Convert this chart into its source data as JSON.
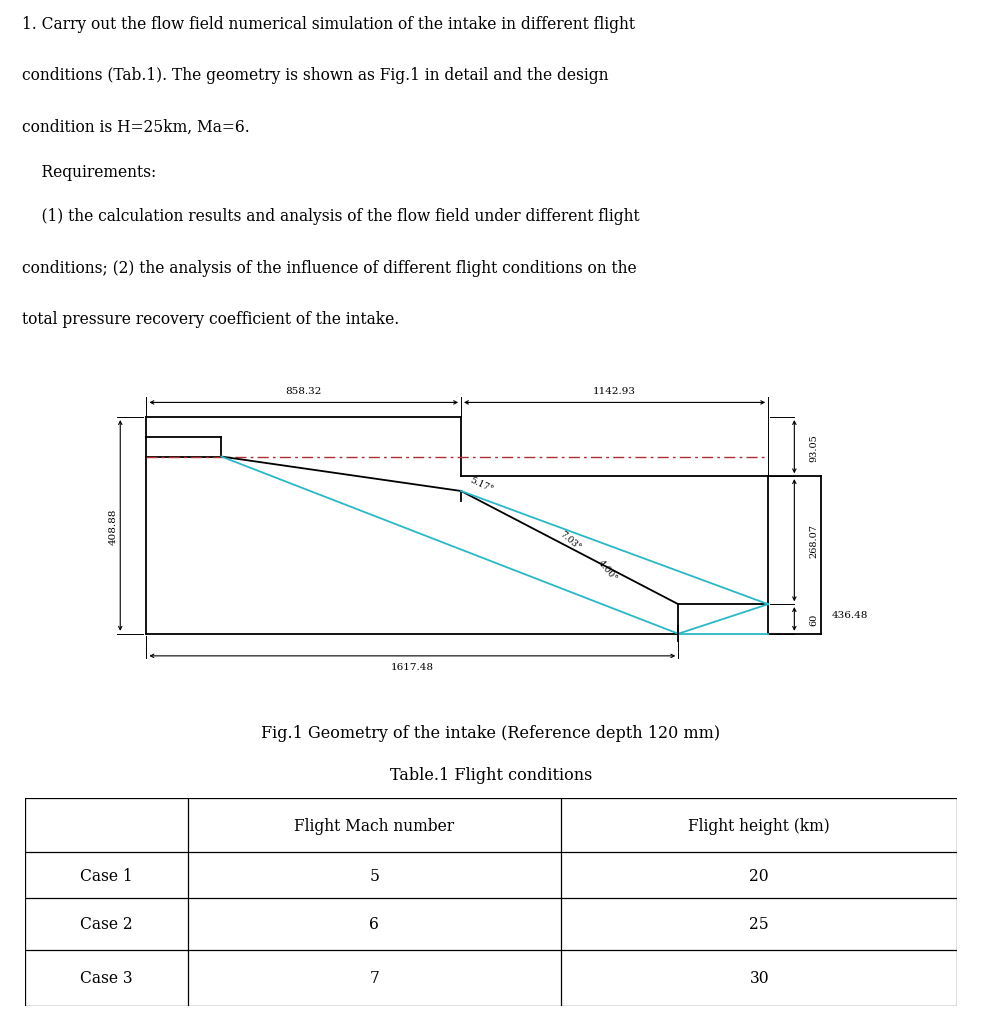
{
  "lines": [
    "1. Carry out the flow field numerical simulation of the intake in different flight",
    "conditions (Tab.1). The geometry is shown as Fig.1 in detail and the design",
    "condition is H=25km, Ma=6.",
    "    Requirements:",
    "    (1) the calculation results and analysis of the flow field under different flight",
    "conditions; (2) the analysis of the influence of different flight conditions on the",
    "total pressure recovery coefficient of the intake."
  ],
  "fig_caption": "Fig.1 Geometry of the intake (Reference depth 120 mm)",
  "table_title": "Table.1 Flight conditions",
  "table_headers": [
    "",
    "Flight Mach number",
    "Flight height (km)"
  ],
  "table_rows": [
    [
      "Case 1",
      "5",
      "20"
    ],
    [
      "Case 2",
      "6",
      "25"
    ],
    [
      "Case 3",
      "7",
      "30"
    ]
  ],
  "dim_858": "858.32",
  "dim_1142": "1142.93",
  "dim_408": "408.88",
  "dim_1617": "1617.48",
  "dim_436": "436.48",
  "dim_93": "93.05",
  "dim_268": "268.07",
  "dim_60": "60",
  "dim_517": "5.17°",
  "dim_703": "7.03°",
  "dim_400": "4.00°",
  "bg_color": "#ffffff",
  "line_color": "#000000",
  "cyan_color": "#29b8c8",
  "red_dash_color": "#b03030"
}
